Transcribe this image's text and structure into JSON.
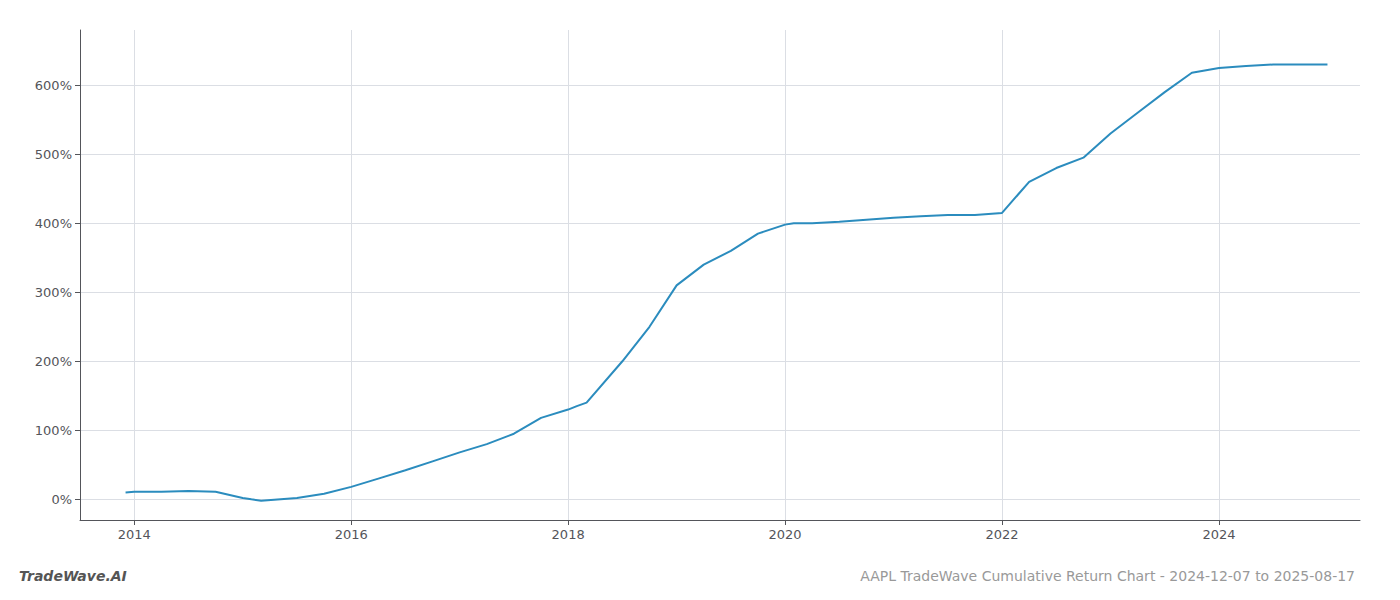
{
  "chart_data": {
    "type": "line",
    "title": "AAPL TradeWave Cumulative Return Chart - 2024-12-07 to 2025-08-17",
    "annotations": [
      "TradeWave.AI"
    ],
    "color": "#2b8cbe",
    "grid": true,
    "x": [
      2013.92,
      2014.0,
      2014.25,
      2014.5,
      2014.75,
      2015.0,
      2015.08,
      2015.17,
      2015.5,
      2015.75,
      2016.0,
      2016.25,
      2016.5,
      2016.75,
      2017.0,
      2017.25,
      2017.5,
      2017.75,
      2018.0,
      2018.08,
      2018.17,
      2018.5,
      2018.75,
      2019.0,
      2019.25,
      2019.5,
      2019.75,
      2020.0,
      2020.08,
      2020.25,
      2020.5,
      2020.75,
      2021.0,
      2021.25,
      2021.5,
      2021.75,
      2022.0,
      2022.25,
      2022.5,
      2022.75,
      2023.0,
      2023.25,
      2023.5,
      2023.75,
      2024.0,
      2024.25,
      2024.5,
      2024.75,
      2025.0
    ],
    "values": [
      10,
      11,
      11,
      12,
      11,
      2,
      0,
      -2,
      2,
      8,
      18,
      30,
      42,
      55,
      68,
      80,
      95,
      118,
      130,
      135,
      140,
      200,
      250,
      310,
      340,
      360,
      385,
      398,
      400,
      400,
      402,
      405,
      408,
      410,
      412,
      412,
      415,
      460,
      480,
      495,
      530,
      560,
      590,
      618,
      625,
      628,
      630,
      630,
      630
    ],
    "xlim": [
      2013.5,
      2025.3
    ],
    "ylim": [
      -30,
      680
    ],
    "xticks": [
      2014,
      2016,
      2018,
      2020,
      2022,
      2024
    ],
    "yticks": [
      {
        "value": 0,
        "label": "0%"
      },
      {
        "value": 100,
        "label": "100%"
      },
      {
        "value": 200,
        "label": "200%"
      },
      {
        "value": 300,
        "label": "300%"
      },
      {
        "value": 400,
        "label": "400%"
      },
      {
        "value": 500,
        "label": "500%"
      },
      {
        "value": 600,
        "label": "600%"
      }
    ]
  }
}
